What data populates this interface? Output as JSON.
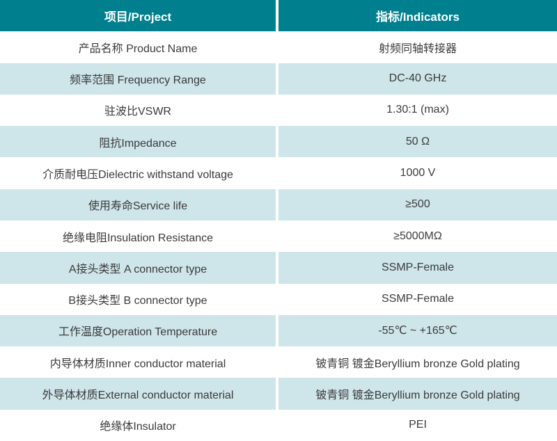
{
  "table": {
    "header": {
      "project": "项目/Project",
      "indicators": "指标/Indicators"
    },
    "rows": [
      {
        "label": "产品名称 Product Name",
        "value": "射频同轴转接器"
      },
      {
        "label": "频率范围 Frequency Range",
        "value": "DC-40 GHz"
      },
      {
        "label": "驻波比VSWR",
        "value": "1.30:1 (max)"
      },
      {
        "label": "阻抗Impedance",
        "value": "50 Ω"
      },
      {
        "label": "介质耐电压Dielectric withstand voltage",
        "value": "1000 V"
      },
      {
        "label": "使用寿命Service life",
        "value": "≥500"
      },
      {
        "label": "绝缘电阻Insulation Resistance",
        "value": "≥5000MΩ"
      },
      {
        "label": "A接头类型 A connector type",
        "value": "SSMP-Female"
      },
      {
        "label": "B接头类型 B connector type",
        "value": "SSMP-Female"
      },
      {
        "label": "工作温度Operation Temperature",
        "value": "-55℃ ~ +165℃"
      },
      {
        "label": "内导体材质Inner conductor material",
        "value": "铍青铜 镀金Beryllium bronze Gold plating"
      },
      {
        "label": "外导体材质External conductor material",
        "value": "铍青铜 镀金Beryllium bronze Gold plating"
      },
      {
        "label": "绝缘体Insulator",
        "value": "PEI"
      }
    ]
  },
  "colors": {
    "header-bg": "#00808F",
    "header-text": "#FFFFFF",
    "row-bg": "#FFFFFF",
    "row-alt-bg": "#CEE5EA",
    "body-text": "#3A3A3A",
    "divider": "#FFFFFF"
  }
}
